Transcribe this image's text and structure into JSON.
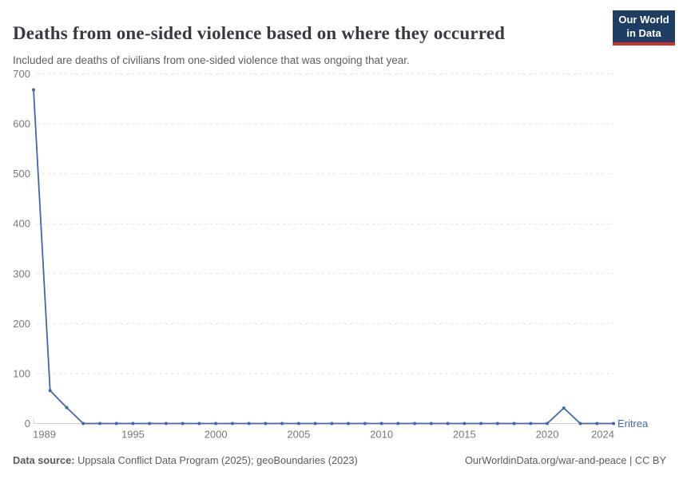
{
  "chart_data": {
    "type": "line",
    "title": "Deaths from one-sided violence based on where they occurred",
    "subtitle": "Included are deaths of civilians from one-sided violence that was ongoing that year.",
    "entity_label": "Eritrea",
    "x": [
      1989,
      1990,
      1991,
      1992,
      1993,
      1994,
      1995,
      1996,
      1997,
      1998,
      1999,
      2000,
      2001,
      2002,
      2003,
      2004,
      2005,
      2006,
      2007,
      2008,
      2009,
      2010,
      2011,
      2012,
      2013,
      2014,
      2015,
      2016,
      2017,
      2018,
      2019,
      2020,
      2021,
      2022,
      2023,
      2024
    ],
    "series": [
      {
        "name": "Eritrea",
        "values": [
          668,
          66,
          32,
          0,
          0,
          0,
          0,
          0,
          0,
          0,
          0,
          0,
          0,
          0,
          0,
          0,
          0,
          0,
          0,
          0,
          0,
          0,
          0,
          0,
          0,
          0,
          0,
          0,
          0,
          0,
          0,
          0,
          31,
          0,
          0,
          0
        ]
      }
    ],
    "xticks": [
      1989,
      1995,
      2000,
      2005,
      2010,
      2015,
      2020,
      2024
    ],
    "yticks": [
      0,
      100,
      200,
      300,
      400,
      500,
      600,
      700
    ],
    "xlim": [
      1989,
      2024
    ],
    "ylim": [
      0,
      700
    ],
    "xlabel": "",
    "ylabel": "",
    "grid": "horizontal-dashed",
    "legend_position": "label-at-line-end"
  },
  "logo": {
    "line1": "Our World",
    "line2": "in Data"
  },
  "footer": {
    "source_label": "Data source:",
    "source_text": " Uppsala Conflict Data Program (2025); geoBoundaries (2023)",
    "rights": "OurWorldinData.org/war-and-peace | CC BY"
  },
  "colors": {
    "line": "#4166ac",
    "title": "#383a42",
    "subtitle": "#5b5f61",
    "tick": "#76787b",
    "grid": "#e2e2e2",
    "axis": "#cfcfcf",
    "footer": "#5b5b5b",
    "logo-bg": "#1d3d63",
    "logo-red": "#d0312d"
  }
}
